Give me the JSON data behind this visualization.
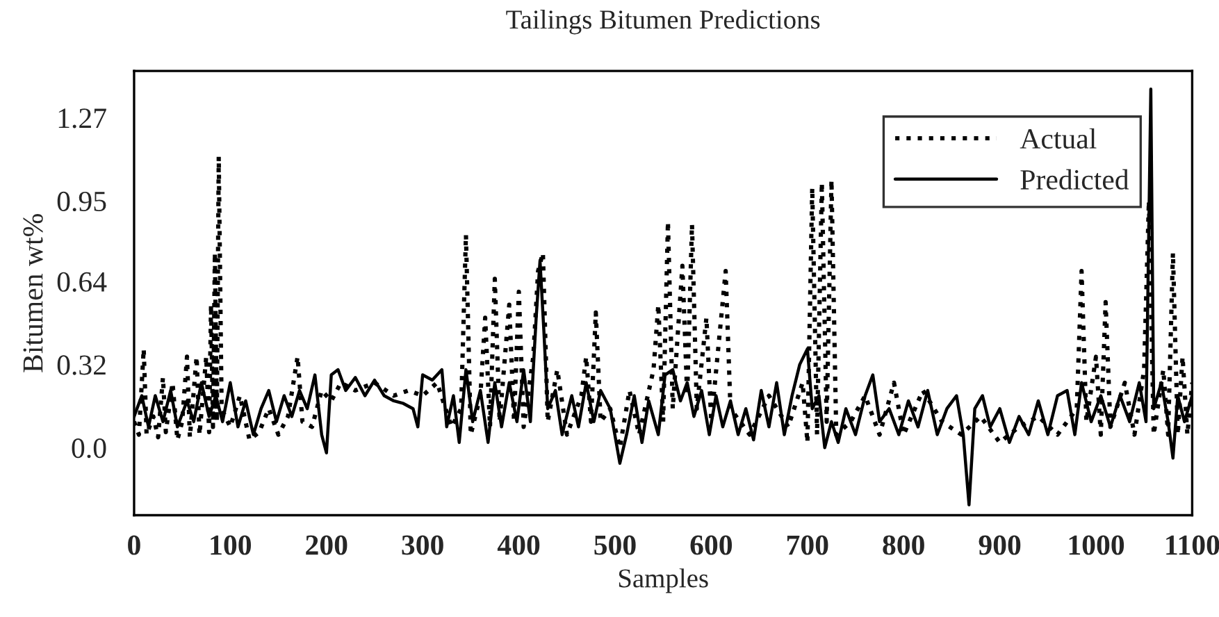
{
  "chart_data": {
    "type": "line",
    "title": "Tailings Bitumen Predictions",
    "xlabel": "Samples",
    "ylabel": "Bitumen wt%",
    "xlim": [
      0,
      1100
    ],
    "xticks": [
      0,
      100,
      200,
      300,
      400,
      500,
      600,
      700,
      800,
      900,
      1000,
      1100
    ],
    "ylim": [
      -0.26,
      1.45
    ],
    "yticks": [
      {
        "value": 0.0,
        "label": "0.0"
      },
      0.32,
      0.64,
      0.95,
      1.27
    ],
    "grid": false,
    "legend": "top right",
    "series": [
      {
        "name": "Actual",
        "color": "#000000",
        "line_style": "dotted",
        "x": [
          0,
          5,
          10,
          13,
          20,
          25,
          30,
          33,
          40,
          45,
          50,
          55,
          58,
          65,
          68,
          75,
          78,
          80,
          82,
          84,
          86,
          88,
          91,
          100,
          110,
          120,
          130,
          140,
          150,
          160,
          170,
          175,
          185,
          195,
          205,
          215,
          230,
          250,
          270,
          285,
          300,
          315,
          330,
          340,
          345,
          350,
          360,
          365,
          370,
          375,
          380,
          390,
          395,
          400,
          405,
          415,
          420,
          425,
          430,
          440,
          450,
          465,
          470,
          475,
          480,
          485,
          495,
          505,
          515,
          525,
          540,
          545,
          550,
          555,
          560,
          570,
          575,
          580,
          585,
          595,
          600,
          615,
          620,
          640,
          660,
          680,
          695,
          700,
          705,
          710,
          715,
          720,
          725,
          730,
          745,
          760,
          775,
          790,
          800,
          820,
          840,
          860,
          880,
          900,
          920,
          940,
          960,
          980,
          985,
          990,
          1000,
          1005,
          1010,
          1015,
          1030,
          1040,
          1050,
          1055,
          1060,
          1070,
          1075,
          1080,
          1085,
          1090,
          1095,
          1100
        ],
        "values": [
          0.1,
          0.05,
          0.38,
          0.05,
          0.12,
          0.04,
          0.27,
          0.06,
          0.25,
          0.03,
          0.1,
          0.35,
          0.04,
          0.35,
          0.05,
          0.35,
          0.06,
          0.55,
          0.08,
          0.75,
          0.1,
          1.12,
          0.15,
          0.08,
          0.2,
          0.03,
          0.06,
          0.15,
          0.05,
          0.12,
          0.35,
          0.1,
          0.08,
          0.22,
          0.18,
          0.25,
          0.22,
          0.25,
          0.2,
          0.22,
          0.2,
          0.25,
          0.08,
          0.15,
          0.82,
          0.05,
          0.2,
          0.5,
          0.08,
          0.65,
          0.1,
          0.55,
          0.1,
          0.6,
          0.08,
          0.35,
          0.68,
          0.75,
          0.1,
          0.3,
          0.05,
          0.2,
          0.35,
          0.1,
          0.52,
          0.1,
          0.15,
          0.0,
          0.22,
          0.05,
          0.3,
          0.55,
          0.1,
          0.87,
          0.15,
          0.7,
          0.2,
          0.86,
          0.15,
          0.5,
          0.1,
          0.68,
          0.15,
          0.05,
          0.2,
          0.08,
          0.25,
          0.02,
          1.0,
          0.05,
          1.02,
          0.1,
          1.03,
          0.05,
          0.1,
          0.2,
          0.05,
          0.25,
          0.05,
          0.22,
          0.1,
          0.05,
          0.12,
          0.02,
          0.08,
          0.12,
          0.05,
          0.15,
          0.68,
          0.1,
          0.35,
          0.05,
          0.56,
          0.08,
          0.25,
          0.05,
          0.3,
          0.95,
          0.05,
          0.3,
          0.05,
          0.75,
          0.05,
          0.35,
          0.05,
          0.25
        ]
      },
      {
        "name": "Predicted",
        "color": "#000000",
        "line_style": "solid",
        "x": [
          0,
          8,
          15,
          22,
          30,
          38,
          45,
          55,
          62,
          70,
          78,
          85,
          92,
          100,
          108,
          116,
          124,
          132,
          140,
          148,
          156,
          164,
          172,
          180,
          188,
          195,
          200,
          205,
          212,
          220,
          230,
          240,
          250,
          260,
          270,
          280,
          290,
          295,
          300,
          310,
          320,
          325,
          332,
          338,
          345,
          352,
          360,
          368,
          375,
          382,
          390,
          398,
          405,
          412,
          418,
          422,
          426,
          430,
          438,
          445,
          455,
          462,
          470,
          478,
          485,
          495,
          505,
          512,
          520,
          528,
          535,
          545,
          552,
          560,
          568,
          575,
          582,
          590,
          598,
          605,
          612,
          620,
          628,
          636,
          644,
          652,
          660,
          668,
          676,
          684,
          692,
          700,
          705,
          712,
          718,
          725,
          732,
          740,
          750,
          760,
          768,
          775,
          785,
          795,
          805,
          815,
          825,
          835,
          845,
          855,
          862,
          868,
          874,
          882,
          890,
          900,
          910,
          920,
          930,
          940,
          950,
          960,
          970,
          978,
          985,
          995,
          1005,
          1015,
          1025,
          1035,
          1045,
          1052,
          1057,
          1060,
          1068,
          1075,
          1080,
          1085,
          1092,
          1100
        ],
        "values": [
          0.12,
          0.2,
          0.08,
          0.2,
          0.1,
          0.22,
          0.08,
          0.18,
          0.1,
          0.25,
          0.12,
          0.2,
          0.1,
          0.25,
          0.08,
          0.18,
          0.05,
          0.15,
          0.22,
          0.1,
          0.2,
          0.12,
          0.22,
          0.15,
          0.28,
          0.05,
          -0.02,
          0.28,
          0.3,
          0.22,
          0.27,
          0.2,
          0.26,
          0.2,
          0.18,
          0.17,
          0.15,
          0.08,
          0.28,
          0.26,
          0.3,
          0.08,
          0.2,
          0.02,
          0.3,
          0.1,
          0.22,
          0.02,
          0.25,
          0.08,
          0.25,
          0.1,
          0.3,
          0.1,
          0.5,
          0.72,
          0.45,
          0.15,
          0.22,
          0.05,
          0.2,
          0.08,
          0.25,
          0.1,
          0.22,
          0.15,
          -0.06,
          0.05,
          0.2,
          0.02,
          0.18,
          0.05,
          0.28,
          0.3,
          0.18,
          0.25,
          0.12,
          0.22,
          0.05,
          0.2,
          0.08,
          0.18,
          0.05,
          0.15,
          0.03,
          0.22,
          0.08,
          0.25,
          0.05,
          0.2,
          0.32,
          0.38,
          0.15,
          0.2,
          0.0,
          0.1,
          0.02,
          0.15,
          0.05,
          0.2,
          0.28,
          0.1,
          0.15,
          0.05,
          0.18,
          0.08,
          0.22,
          0.05,
          0.15,
          0.2,
          0.05,
          -0.22,
          0.15,
          0.2,
          0.08,
          0.15,
          0.02,
          0.12,
          0.05,
          0.18,
          0.05,
          0.2,
          0.22,
          0.05,
          0.25,
          0.1,
          0.2,
          0.08,
          0.2,
          0.1,
          0.25,
          0.1,
          1.38,
          0.15,
          0.25,
          0.1,
          -0.04,
          0.2,
          0.1,
          0.2
        ]
      }
    ]
  }
}
